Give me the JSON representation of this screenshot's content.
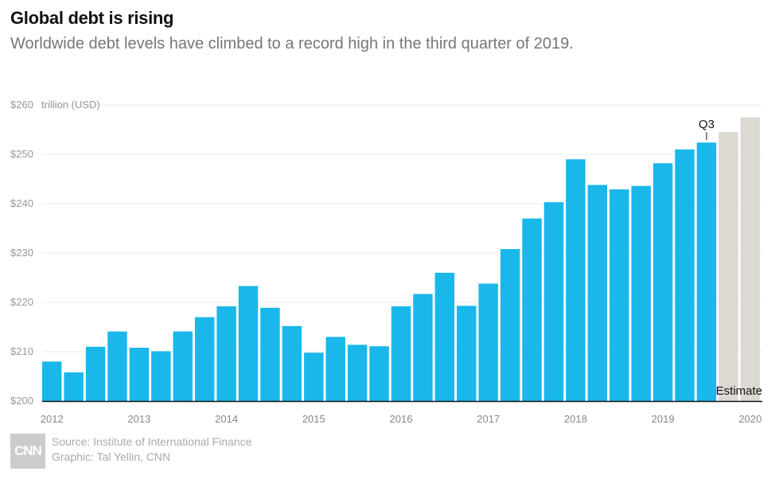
{
  "chart_data": {
    "type": "bar",
    "title": "Global debt is rising",
    "subtitle": "Worldwide debt levels have climbed to a record high in the third quarter of 2019.",
    "unit_label": "trillion (USD)",
    "ylim": [
      200,
      260
    ],
    "yticks": [
      "$200",
      "$210",
      "$220",
      "$230",
      "$240",
      "$250",
      "$260"
    ],
    "year_labels": [
      "2012",
      "2013",
      "2014",
      "2015",
      "2016",
      "2017",
      "2018",
      "2019",
      "2020"
    ],
    "grid": true,
    "values": [
      208,
      205.8,
      211,
      214.1,
      210.8,
      210.1,
      214.1,
      217,
      219.2,
      223.3,
      218.9,
      215.2,
      209.8,
      213,
      211.4,
      211.1,
      219.2,
      221.7,
      226,
      219.3,
      223.8,
      230.8,
      237,
      240.3,
      249,
      243.8,
      242.9,
      243.6,
      248.2,
      251,
      252.4,
      254.5,
      257.5
    ],
    "estimate_count": 2,
    "colors": {
      "actual": "#1ab7ea",
      "estimate": "#dcd8d2"
    },
    "annotations": {
      "latest": "Q3",
      "estimate": "Estimate"
    }
  },
  "footer": {
    "logo": "CNN",
    "source": "Source: Institute of International Finance",
    "graphic": "Graphic: Tal Yellin, CNN"
  }
}
